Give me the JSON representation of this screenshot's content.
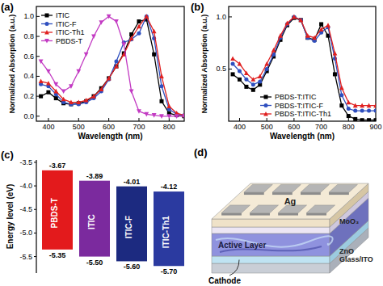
{
  "chart_data": [
    {
      "type": "line",
      "title": "(a)",
      "x_label": "Wavelength (nm)",
      "y_label": "Normalized Absorption (a.u.)",
      "x": [
        375,
        400,
        425,
        450,
        475,
        500,
        525,
        550,
        575,
        600,
        625,
        650,
        675,
        700,
        725,
        750,
        775,
        800,
        825,
        850
      ],
      "series": [
        {
          "name": "ITIC",
          "color": "#000000",
          "marker": "square",
          "values": [
            0.2,
            0.24,
            0.18,
            0.13,
            0.12,
            0.13,
            0.15,
            0.2,
            0.28,
            0.38,
            0.5,
            0.63,
            0.82,
            0.95,
            0.97,
            0.62,
            0.15,
            0.03,
            0.01,
            0.0
          ]
        },
        {
          "name": "ITIC-F",
          "color": "#2f4fbf",
          "marker": "circle",
          "values": [
            0.32,
            0.3,
            0.22,
            0.14,
            0.12,
            0.12,
            0.14,
            0.18,
            0.25,
            0.37,
            0.55,
            0.74,
            0.77,
            0.83,
            1.0,
            0.78,
            0.3,
            0.07,
            0.02,
            0.01
          ]
        },
        {
          "name": "ITIC-Th1",
          "color": "#e02020",
          "marker": "triangle",
          "values": [
            0.35,
            0.33,
            0.25,
            0.17,
            0.14,
            0.14,
            0.16,
            0.2,
            0.27,
            0.38,
            0.5,
            0.62,
            0.78,
            0.9,
            1.0,
            0.85,
            0.4,
            0.1,
            0.03,
            0.01
          ]
        },
        {
          "name": "PBDS-T",
          "color": "#c33bc3",
          "marker": "triangle-down",
          "values": [
            0.55,
            0.45,
            0.32,
            0.25,
            0.3,
            0.45,
            0.62,
            0.8,
            0.94,
            1.0,
            0.95,
            0.72,
            0.25,
            0.05,
            0.02,
            0.01,
            0.0,
            0.0,
            0.0,
            0.0
          ]
        }
      ],
      "xlim": [
        360,
        850
      ],
      "ylim": [
        -0.05,
        1.1
      ],
      "xticks": [
        400,
        500,
        600,
        700,
        800
      ],
      "yticks": [
        {
          "value": 0,
          "label": "0.0"
        },
        0.2,
        0.4,
        0.6,
        0.8,
        {
          "value": 1,
          "label": "1.0"
        }
      ],
      "legend": "upper left"
    },
    {
      "type": "line",
      "title": "(b)",
      "x_label": "Wavelength (nm)",
      "y_label": "Normalized Absorption (a.u.)",
      "x": [
        375,
        400,
        425,
        450,
        475,
        500,
        525,
        550,
        575,
        600,
        625,
        650,
        675,
        700,
        725,
        750,
        775,
        800,
        825,
        850,
        875,
        900
      ],
      "series": [
        {
          "name": "PBDS-T:ITIC",
          "color": "#000000",
          "marker": "square",
          "values": [
            0.45,
            0.4,
            0.33,
            0.3,
            0.35,
            0.48,
            0.62,
            0.78,
            0.92,
            0.99,
            0.97,
            0.8,
            0.78,
            0.93,
            0.82,
            0.45,
            0.15,
            0.05,
            0.02,
            0.01,
            0.01,
            0.01
          ]
        },
        {
          "name": "PBDS-T:ITIC-F",
          "color": "#2f4fbf",
          "marker": "circle",
          "values": [
            0.55,
            0.48,
            0.4,
            0.35,
            0.38,
            0.5,
            0.64,
            0.8,
            0.93,
            1.0,
            0.97,
            0.8,
            0.77,
            0.85,
            0.9,
            0.6,
            0.25,
            0.12,
            0.1,
            0.1,
            0.1,
            0.1
          ]
        },
        {
          "name": "PBDS-T:ITIC-Th1",
          "color": "#e02020",
          "marker": "triangle",
          "values": [
            0.6,
            0.55,
            0.46,
            0.4,
            0.43,
            0.55,
            0.68,
            0.82,
            0.94,
            1.0,
            0.97,
            0.82,
            0.8,
            0.88,
            0.92,
            0.65,
            0.32,
            0.18,
            0.15,
            0.15,
            0.15,
            0.15
          ]
        }
      ],
      "xlim": [
        360,
        900
      ],
      "ylim": [
        0,
        1.1
      ],
      "xticks": [
        400,
        500,
        600,
        700,
        800,
        900
      ],
      "yticks": [
        0.5,
        {
          "value": 1,
          "label": "1.0"
        }
      ],
      "legend": "lower center"
    },
    {
      "type": "floating_bar",
      "title": "(c)",
      "y_label": "Energy level (eV)",
      "categories": [
        "PBDS-T",
        "ITIC",
        "ITIC-F",
        "ITIC-Th1"
      ],
      "colors": [
        "#e31a1c",
        "#7b2a9e",
        "#1c2a80",
        "#2b3aa0"
      ],
      "series": [
        {
          "values": [
            -3.67,
            -3.89,
            -4.01,
            -4.12
          ]
        },
        {
          "values": [
            -5.35,
            -5.5,
            -5.6,
            -5.7
          ],
          "value_labels": [
            "-5.35",
            "-5.50",
            "-5.60",
            "-5.70"
          ]
        }
      ],
      "ylim": [
        -5.85,
        -3.45
      ],
      "yticks": [
        -3.5,
        {
          "value": -4,
          "label": "-4.0"
        },
        -4.5,
        {
          "value": -5,
          "label": "-5.0"
        },
        -5.5
      ],
      "data_labels": true
    }
  ],
  "schematic": {
    "title": "(d)",
    "layers": [
      "Ag",
      "MoO₃",
      "Active Layer",
      "ZnO",
      "Glass/ITO"
    ],
    "electrode": "Cathode"
  }
}
